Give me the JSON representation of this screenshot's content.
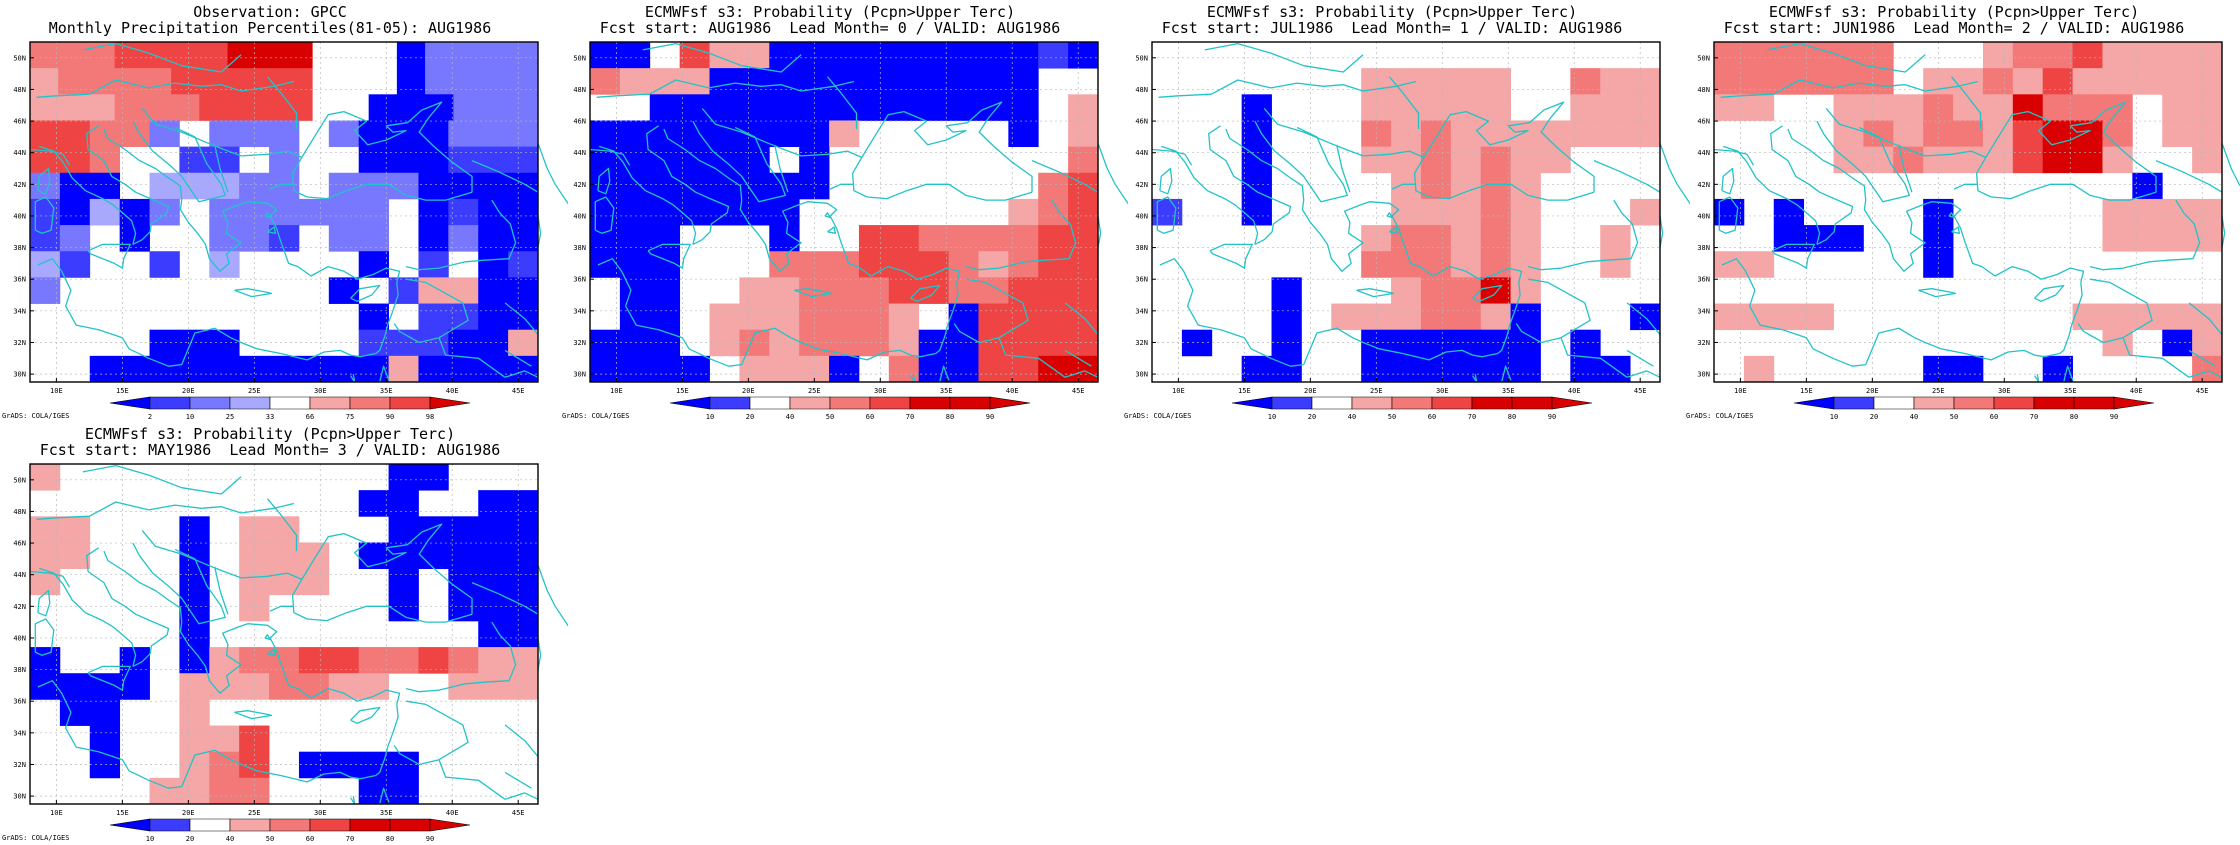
{
  "page": {
    "footer_label": "GrADS: COLA/IGES"
  },
  "colors": {
    "coast": "#22c3c8",
    "grid": "#b8b8b8",
    "palette": {
      "B3": "#0000ff",
      "B2": "#3c3cff",
      "B1": "#7878ff",
      "B0": "#a8a8ff",
      "W": "#ffffff",
      "R1": "#f5a6a6",
      "R2": "#f37878",
      "R3": "#ee4444",
      "R4": "#d80000"
    }
  },
  "axes": {
    "x_ticks": [
      "10E",
      "15E",
      "20E",
      "25E",
      "30E",
      "35E",
      "40E",
      "45E"
    ],
    "y_ticks": [
      "30N",
      "32N",
      "34N",
      "36N",
      "38N",
      "40N",
      "42N",
      "44N",
      "46N",
      "48N",
      "50N"
    ],
    "lon_range": [
      8,
      46.5
    ],
    "lat_range": [
      29.5,
      51
    ],
    "grid": true
  },
  "colorbars": {
    "obs": {
      "labels": [
        "2",
        "10",
        "25",
        "33",
        "66",
        "75",
        "90",
        "98"
      ],
      "colors": [
        "B3",
        "B2",
        "B1",
        "B0",
        "W",
        "R1",
        "R2",
        "R3",
        "R4"
      ]
    },
    "prob": {
      "labels": [
        "10",
        "20",
        "40",
        "50",
        "60",
        "70",
        "80",
        "90"
      ],
      "colors": [
        "B3",
        "B2",
        "W",
        "R1",
        "R2",
        "R3",
        "R4",
        "R4",
        "R4"
      ]
    }
  },
  "panels": [
    {
      "title_line1": "Observation: GPCC",
      "title_line2": "Monthly Precipitation Percentiles(81-05): AUG1986",
      "colorbar": "obs",
      "grid_rows": [
        "R2R2R2R3R3R3R3R4R4R4WWWB3B1B1B1B1",
        "R1R2R2R2R2R3R3R3R3R3WWWB3B1B1B1B1",
        "R1R1R1R2R2R2R3R3R3R3WWB3B3B3B1B1B1",
        "R3R3R2R2B1WB1B1B1WB1B3B3B3B1B1B1",
        "R3R3R2WWB2B2WB1WWB3B3B3B2B2B2",
        "B1B3B3WB0B0B0B1B1WB1B1B1B3B3B3B3",
        "B2B3B0B3B1WB1B1B1B1B1B1WB3B2B3B3",
        "B2B1WB3WWB1B1B2WB1B1WB3B1B3B3",
        "B0B2WWB2WB0WWWWB3WB2WB3B2",
        "B1WWWWWWWWWB3WB2R1R1B3B3",
        "WWWWWWWWWWWB3WB2B2B3B3",
        "WWWWB3B3B3WWWWB2B2B2B3B3R1",
        "WWB3B3B3B3B3B3B3B3B3B3R1B3B3B3B3"
      ]
    },
    {
      "title_line1": "ECMWFsf s3: Probability (Pcpn>Upper Terc)",
      "title_line2": "Fcst start: AUG1986  Lead Month= 0 / VALID: AUG1986",
      "colorbar": "prob",
      "grid_rows": [
        "B3B3WR3R1R1B3B3B3B3B3B3B3B3B3B2B3",
        "R2R1R1R1B3B3B3B3B3B3B3B3B3B3B3WW",
        "WWB3B3B3B3B3B3B3B3B3B3B3B3B3WR1",
        "B3B3B3B3B3B3B3B3R1WWWWWB3WR1",
        "B3B3B3B3B3B3WB3WWWWWWWWR2",
        "B3B3B3B3B3B3B3B3WWWWWWWR2R3",
        "B3B3B3B3B3B3B3WWWWWWWR1R2R3",
        "B3B3B3WWWB3WWR3R3R2R2R2R2R3R3",
        "B3B3B3WWWR2R2R2R3R3R3R2R1R2R3R3",
        "WB3B3WWR1R1R2R2R2R3R3R2R2R3R3R3",
        "WB3B3WR1R1R1R2R2R2R1WB3R3R3R3R3",
        "B3B3B3WR1R2R1R2R2R2R1B3B3R3R3R3R3",
        "B3B3B3B3WR1R1R1B3WR2B3B3R3R3R4R4"
      ]
    },
    {
      "title_line1": "ECMWFsf s3: Probability (Pcpn>Upper Terc)",
      "title_line2": "Fcst start: JUL1986  Lead Month= 1 / VALID: AUG1986",
      "colorbar": "prob",
      "grid_rows": [
        "WWWWWWWWWWWWWWWWW",
        "WWWWWWWR1R1R1R1R1WWR2R1R1",
        "WWWB3WWWR1R1R1R1R1WWR1R1R1",
        "WWWB3WWWR2R1R2R1R1R1R1R1R1R1",
        "WWWB3WWWR1R1R2R1R2R1R1WWW",
        "WWWB3WWWWR1R2R1R2R1WWWW",
        "B2WWB3WWWWR1R1R1R2R1WWWR1",
        "WWWWWWWR1R2R2R1R2R1WWR1W",
        "WWWWWWWR2R2R2R1R2R1WWR1W",
        "WWWWB3WWWR1R2R2R4R1WWWW",
        "WWWWB3WR1R1R1R2R2R1B3WWWB3",
        "WB3WWB3WWB3B3B3B3B3B3WB3WW",
        "WWWB3B3WWB3B3B3B3B3B3WB3B3W"
      ]
    },
    {
      "title_line1": "ECMWFsf s3: Probability (Pcpn>Upper Terc)",
      "title_line2": "Fcst start: JUN1986  Lead Month= 2 / VALID: AUG1986",
      "colorbar": "prob",
      "grid_rows": [
        "R2R2R2R2R2R2WWWR1R2R2R3R1R1R1R1",
        "R2R2R2R2R2R2WR1R1R2R1R3R1R1R1R1R1",
        "R1R1WWR1R1R1R2R1R1R4R2R2R2WR1R1",
        "WWWWR1R2R1R2R2R1R3R4R4R2WR1R1",
        "WWWWR1R1R2R1R1R1R3R4R4R1WWR1",
        "WWWWWWWWWWWWWWB3WW",
        "B3WB3WWWWB3WWWWWR1R1R1R1",
        "WWB3B3B3WWB3WWWWWR1R1R1R1",
        "R1R1WWWWWB3WWWWWWWWW",
        "WWWWWWWWWWWWWWWWW",
        "R1R1R1R1WWWWWWWWR1R1R1R1R1",
        "WWWWWWWWWWWWWR1WB3R1",
        "WR1WWWWWB3B3WWB3WWWWR2"
      ]
    },
    {
      "title_line1": "ECMWFsf s3: Probability (Pcpn>Upper Terc)",
      "title_line2": "Fcst start: MAY1986  Lead Month= 3 / VALID: AUG1986",
      "colorbar": "prob",
      "grid_rows": [
        "R1WWWWWWWWWWWB3B3WWW",
        "WWWWWWWWWWWB3B3WWB3B3",
        "R1R1WWWB3WR1R1WWWB3B3B3B3B3",
        "R1R1WWWB3WR1R1R1WB3B3B3B3B3B3",
        "R1WWWWB3WR1R1R1WWB3WB3B3B3",
        "WWWWWB3WR1WWWWB3WB3B3B3",
        "WWWWWB3WWWWWWWWWB3B3",
        "B3WWB3WB3R1R2R2R3R3R2R2R3R2R1R1",
        "B3B3B3B3WR1R1R1R2R2R1R1WWR1R1R1",
        "WB3B3WWR1WWWWWWWWWWW",
        "WWB3WWR1R1R3WWWWWWWWW",
        "WWB3WWR1R2R3WB3B3B3B3WWWW",
        "WWWWR1R1R2R2WWWB3B3WWWW"
      ]
    }
  ]
}
